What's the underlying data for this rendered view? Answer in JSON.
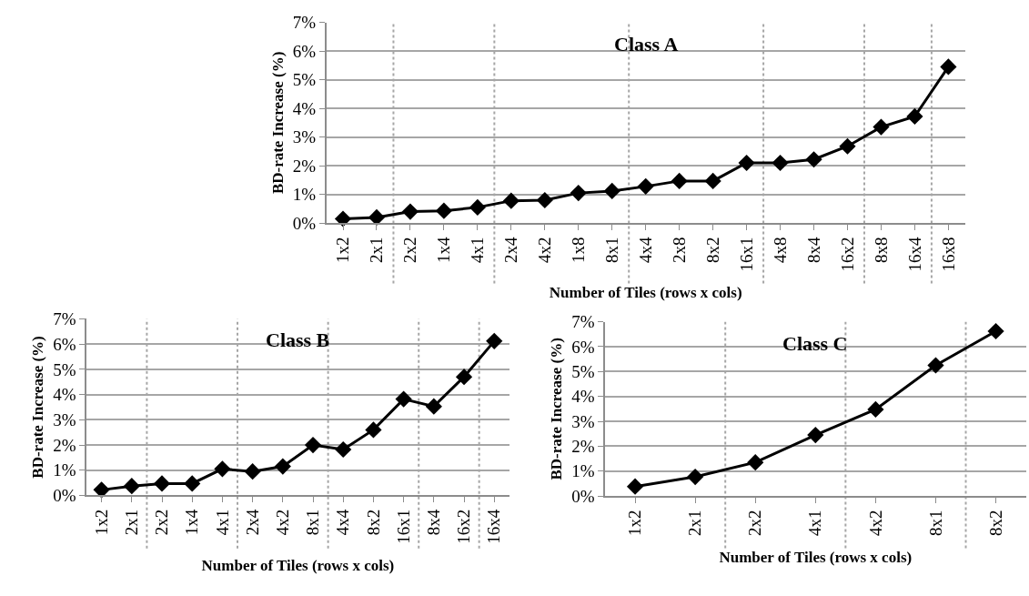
{
  "chart_data": [
    {
      "type": "line",
      "title": "Class A",
      "xlabel": "Number of Tiles (rows x cols)",
      "ylabel": "BD-rate Increase (%)",
      "categories": [
        "1x2",
        "2x1",
        "2x2",
        "1x4",
        "4x1",
        "2x4",
        "4x2",
        "1x8",
        "8x1",
        "4x4",
        "2x8",
        "8x2",
        "16x1",
        "4x8",
        "8x4",
        "16x2",
        "8x8",
        "16x4",
        "16x8"
      ],
      "series": [
        {
          "color": "#000000",
          "values": [
            0.15,
            0.2,
            0.4,
            0.43,
            0.55,
            0.78,
            0.8,
            1.05,
            1.12,
            1.28,
            1.47,
            1.47,
            2.1,
            2.1,
            2.22,
            2.68,
            3.35,
            3.72,
            5.45
          ]
        }
      ],
      "ylim": [
        0,
        7
      ],
      "yticks": [
        {
          "value": 0,
          "label": "0%"
        },
        {
          "value": 1,
          "label": "1%"
        },
        {
          "value": 2,
          "label": "2%"
        },
        {
          "value": 3,
          "label": "3%"
        },
        {
          "value": 4,
          "label": "4%"
        },
        {
          "value": 5,
          "label": "5%"
        },
        {
          "value": 6,
          "label": "6%"
        },
        {
          "value": 7,
          "label": "7%"
        }
      ],
      "grid": "y",
      "marker": "diamond",
      "line_style": "solid"
    },
    {
      "type": "line",
      "title": "Class B",
      "xlabel": "Number of Tiles (rows x cols)",
      "ylabel": "BD-rate Increase (%)",
      "categories": [
        "1x2",
        "2x1",
        "2x2",
        "1x4",
        "4x1",
        "2x4",
        "4x2",
        "8x1",
        "4x4",
        "8x2",
        "16x1",
        "8x4",
        "16x2",
        "16x4"
      ],
      "series": [
        {
          "color": "#000000",
          "values": [
            0.22,
            0.37,
            0.47,
            0.47,
            1.05,
            0.95,
            1.15,
            2.0,
            1.82,
            2.6,
            3.82,
            3.53,
            4.7,
            6.12
          ]
        }
      ],
      "ylim": [
        0,
        7
      ],
      "yticks": [
        {
          "value": 0,
          "label": "0%"
        },
        {
          "value": 1,
          "label": "1%"
        },
        {
          "value": 2,
          "label": "2%"
        },
        {
          "value": 3,
          "label": "3%"
        },
        {
          "value": 4,
          "label": "4%"
        },
        {
          "value": 5,
          "label": "5%"
        },
        {
          "value": 6,
          "label": "6%"
        },
        {
          "value": 7,
          "label": "7%"
        }
      ],
      "grid": "y",
      "marker": "diamond",
      "line_style": "solid"
    },
    {
      "type": "line",
      "title": "Class C",
      "xlabel": "Number of Tiles (rows x cols)",
      "ylabel": "BD-rate Increase (%)",
      "categories": [
        "1x2",
        "2x1",
        "2x2",
        "4x1",
        "4x2",
        "8x1",
        "8x2"
      ],
      "series": [
        {
          "color": "#000000",
          "values": [
            0.38,
            0.77,
            1.35,
            2.45,
            3.48,
            5.25,
            6.62
          ]
        }
      ],
      "ylim": [
        0,
        7
      ],
      "yticks": [
        {
          "value": 0,
          "label": "0%"
        },
        {
          "value": 1,
          "label": "1%"
        },
        {
          "value": 2,
          "label": "2%"
        },
        {
          "value": 3,
          "label": "3%"
        },
        {
          "value": 4,
          "label": "4%"
        },
        {
          "value": 5,
          "label": "5%"
        },
        {
          "value": 6,
          "label": "6%"
        },
        {
          "value": 7,
          "label": "7%"
        }
      ],
      "grid": "y",
      "marker": "diamond",
      "line_style": "solid"
    }
  ]
}
